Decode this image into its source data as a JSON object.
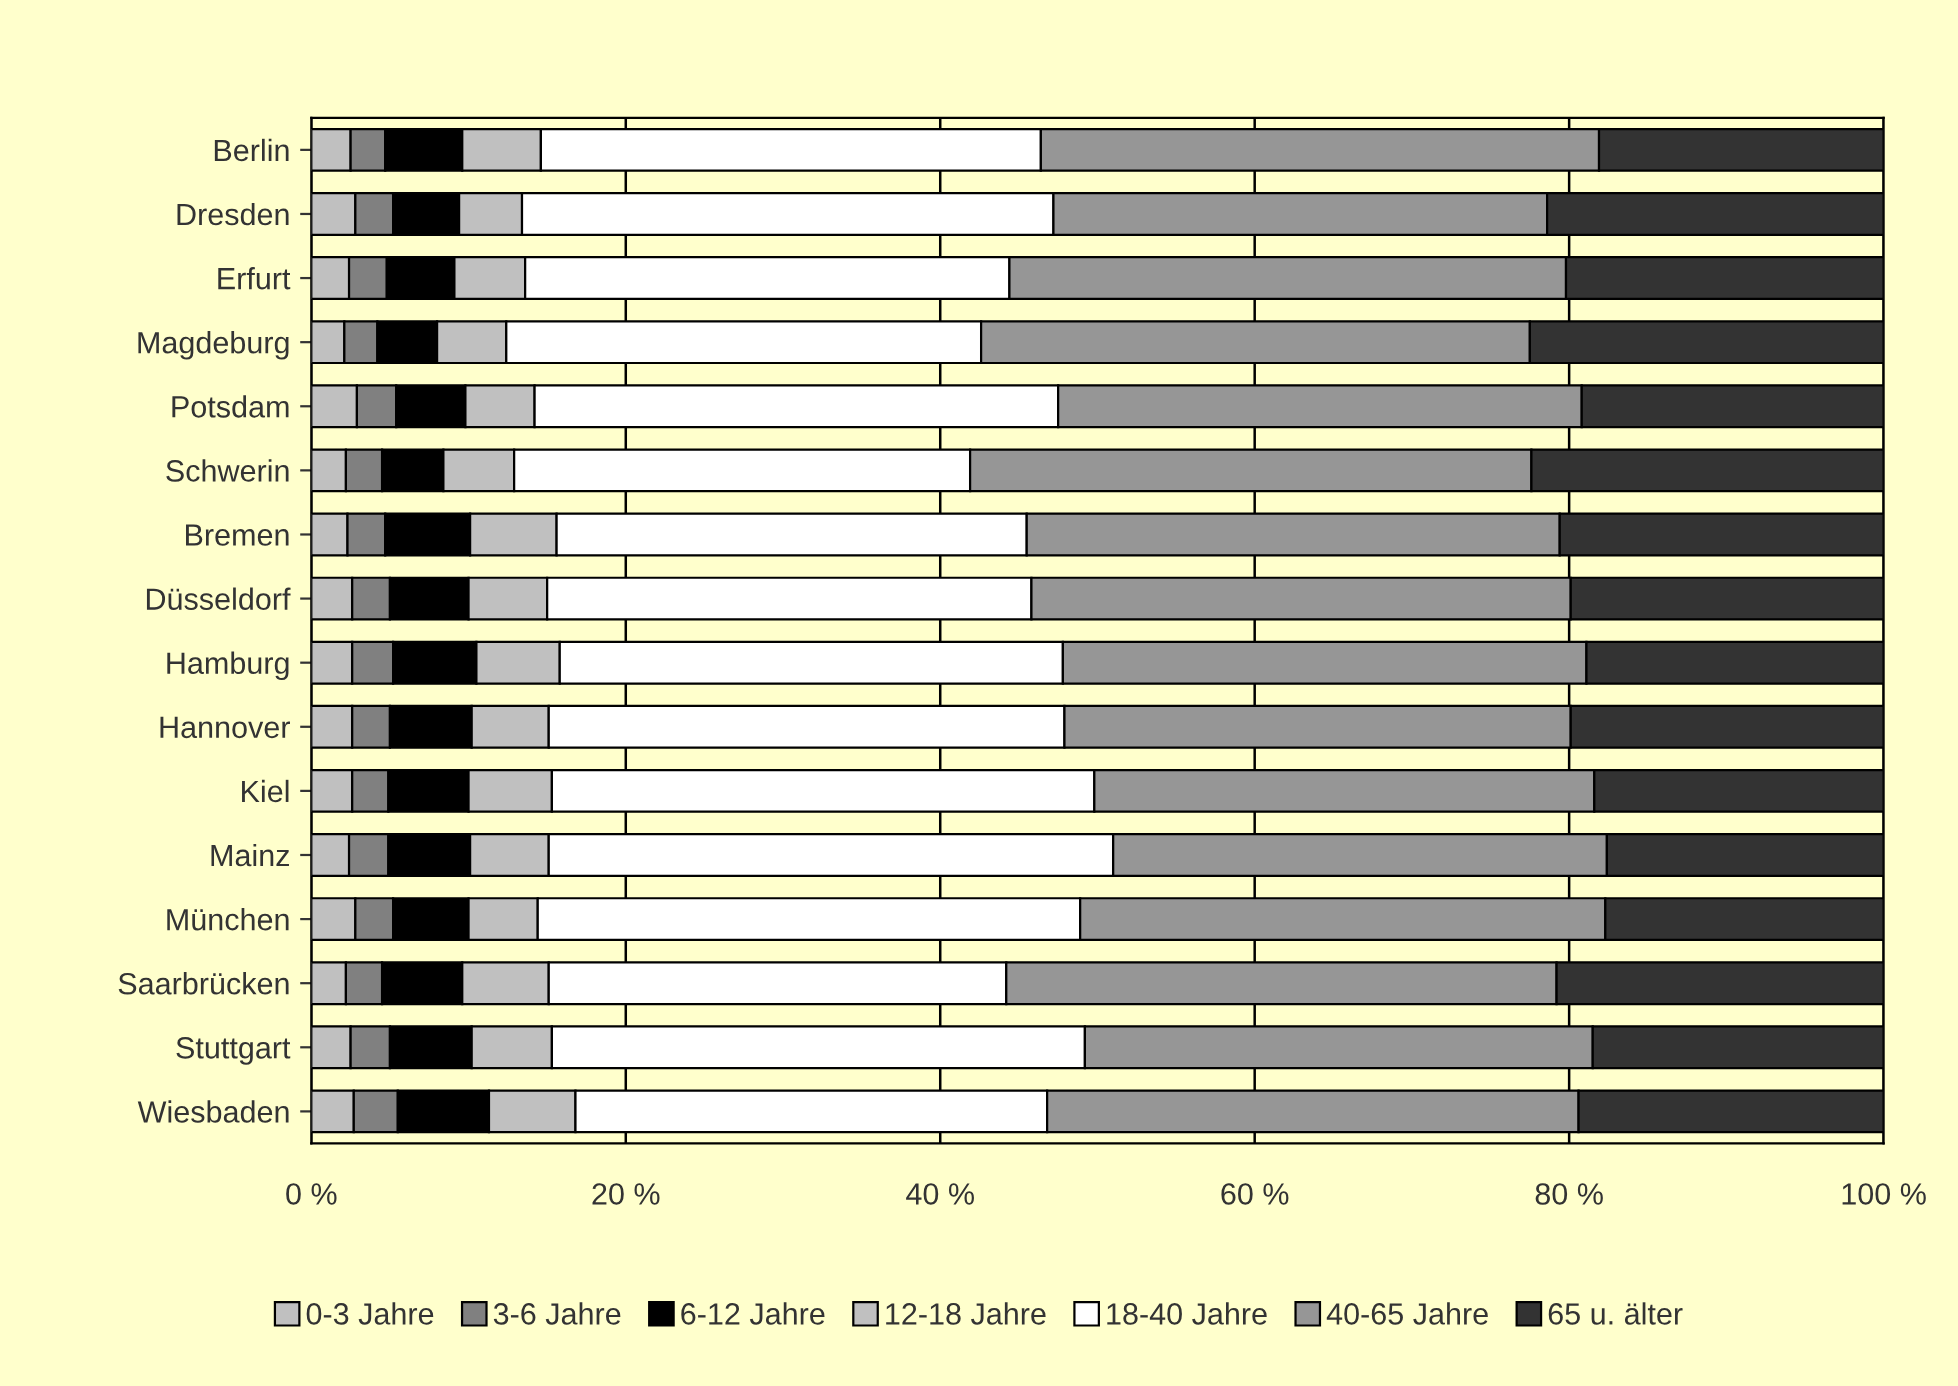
{
  "chart_data": {
    "type": "bar",
    "orientation": "horizontal",
    "stacked": true,
    "categories": [
      "Berlin",
      "Dresden",
      "Erfurt",
      "Magdeburg",
      "Potsdam",
      "Schwerin",
      "Bremen",
      "Düsseldorf",
      "Hamburg",
      "Hannover",
      "Kiel",
      "Mainz",
      "München",
      "Saarbrücken",
      "Stuttgart",
      "Wiesbaden"
    ],
    "series": [
      {
        "name": "0-3 Jahre",
        "color": "#c0c0c0",
        "values": [
          2.5,
          2.8,
          2.4,
          2.1,
          2.9,
          2.2,
          2.3,
          2.6,
          2.6,
          2.6,
          2.6,
          2.4,
          2.8,
          2.2,
          2.5,
          2.7
        ]
      },
      {
        "name": "3-6 Jahre",
        "color": "#808080",
        "values": [
          2.2,
          2.4,
          2.4,
          2.1,
          2.5,
          2.3,
          2.4,
          2.4,
          2.6,
          2.4,
          2.3,
          2.5,
          2.4,
          2.3,
          2.5,
          2.8
        ]
      },
      {
        "name": "6-12 Jahre",
        "color": "#000000",
        "values": [
          4.9,
          4.2,
          4.3,
          3.8,
          4.4,
          3.9,
          5.4,
          5.0,
          5.3,
          5.2,
          5.1,
          5.2,
          4.8,
          5.1,
          5.2,
          5.8
        ]
      },
      {
        "name": "12-18 Jahre",
        "color": "#c0c0c0",
        "values": [
          5.0,
          4.0,
          4.5,
          4.4,
          4.4,
          4.5,
          5.5,
          5.0,
          5.3,
          4.9,
          5.3,
          5.0,
          4.4,
          5.5,
          5.1,
          5.5
        ]
      },
      {
        "name": "18-40 Jahre",
        "color": "#ffffff",
        "values": [
          31.8,
          33.8,
          30.8,
          30.2,
          33.3,
          29.0,
          29.9,
          30.8,
          32.0,
          32.8,
          34.5,
          35.9,
          34.5,
          29.1,
          33.9,
          30.0
        ]
      },
      {
        "name": "40-65 Jahre",
        "color": "#969696",
        "values": [
          35.5,
          31.4,
          35.4,
          34.9,
          33.3,
          35.7,
          33.9,
          34.3,
          33.3,
          32.2,
          31.8,
          31.4,
          33.4,
          35.0,
          32.3,
          33.8
        ]
      },
      {
        "name": "65 u. älter",
        "color": "#333333",
        "values": [
          18.1,
          21.4,
          20.2,
          22.5,
          19.2,
          22.4,
          20.6,
          19.9,
          18.9,
          19.9,
          18.4,
          17.6,
          17.7,
          20.8,
          18.5,
          19.4
        ]
      }
    ],
    "xlim": [
      0,
      100
    ],
    "xticks": [
      {
        "value": 0,
        "label": "0 %"
      },
      {
        "value": 20,
        "label": "20 %"
      },
      {
        "value": 40,
        "label": "40 %"
      },
      {
        "value": 60,
        "label": "60 %"
      },
      {
        "value": 80,
        "label": "80 %"
      },
      {
        "value": 100,
        "label": "100 %"
      }
    ],
    "grid": "x",
    "legend": "bottom"
  }
}
